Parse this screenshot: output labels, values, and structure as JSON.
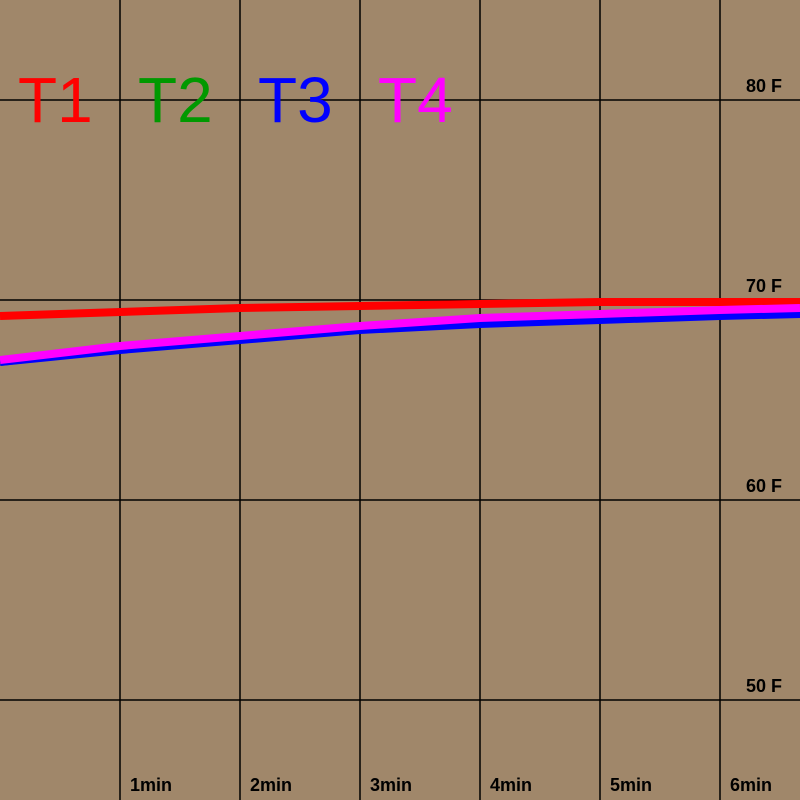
{
  "chart_data": {
    "type": "line",
    "xlim": [
      0,
      6.67
    ],
    "ylim": [
      45,
      85
    ],
    "grid": true,
    "legend_placement": "top-left",
    "x_tick_values": [
      1,
      2,
      3,
      4,
      5,
      6
    ],
    "x_tick_labels": [
      "1min",
      "2min",
      "3min",
      "4min",
      "5min",
      "6min"
    ],
    "y_tick_values": [
      80,
      70,
      60,
      50
    ],
    "y_tick_labels": [
      "80 F",
      "70 F",
      "60 F",
      "50 F"
    ],
    "background_color": "#a0876a",
    "series": [
      {
        "name": "T1",
        "color": "#ff0000",
        "x": [
          0,
          1,
          2,
          3,
          4,
          5,
          6,
          6.67
        ],
        "y": [
          69.2,
          69.4,
          69.6,
          69.7,
          69.8,
          69.9,
          69.9,
          69.9
        ]
      },
      {
        "name": "T2",
        "color": "#009900",
        "x": [
          0,
          1,
          2,
          3,
          4,
          5,
          6,
          6.67
        ],
        "y": [
          66.9,
          67.6,
          68.1,
          68.6,
          69.0,
          69.2,
          69.4,
          69.5
        ]
      },
      {
        "name": "T3",
        "color": "#0000ff",
        "x": [
          0,
          1,
          2,
          3,
          4,
          5,
          6,
          6.67
        ],
        "y": [
          66.9,
          67.5,
          68.0,
          68.5,
          68.8,
          69.0,
          69.2,
          69.3
        ]
      },
      {
        "name": "T4",
        "color": "#ff00ff",
        "x": [
          0,
          1,
          2,
          3,
          4,
          5,
          6,
          6.67
        ],
        "y": [
          67.0,
          67.7,
          68.2,
          68.7,
          69.1,
          69.3,
          69.5,
          69.6
        ]
      }
    ]
  }
}
